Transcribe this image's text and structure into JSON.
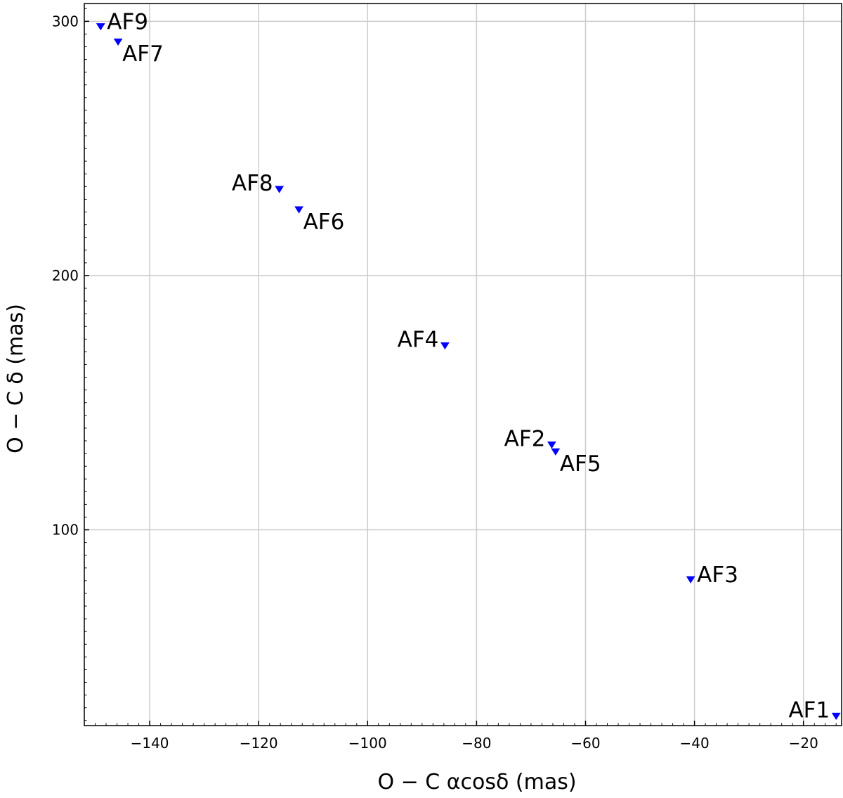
{
  "chart_data": {
    "type": "scatter",
    "xlabel": "O − C  αcosδ (mas)",
    "ylabel": "O − C  δ (mas)",
    "xlim": [
      -152,
      -13
    ],
    "ylim": [
      23,
      307
    ],
    "xticks": [
      -140,
      -120,
      -100,
      -80,
      -60,
      -40,
      -20
    ],
    "yticks": [
      100,
      200,
      300
    ],
    "grid": true,
    "marker": "triangle-down",
    "marker_color": "#0000ff",
    "points": [
      {
        "label": "AF9",
        "x": -149.0,
        "y": 298.0,
        "label_pos": "upper-right"
      },
      {
        "label": "AF7",
        "x": -145.8,
        "y": 292.0,
        "label_pos": "lower-right"
      },
      {
        "label": "AF8",
        "x": -116.2,
        "y": 234.0,
        "label_pos": "upper-left"
      },
      {
        "label": "AF6",
        "x": -112.6,
        "y": 226.0,
        "label_pos": "lower-right"
      },
      {
        "label": "AF4",
        "x": -85.8,
        "y": 172.5,
        "label_pos": "upper-left"
      },
      {
        "label": "AF2",
        "x": -66.2,
        "y": 133.5,
        "label_pos": "upper-left"
      },
      {
        "label": "AF5",
        "x": -65.5,
        "y": 130.8,
        "label_pos": "lower-right"
      },
      {
        "label": "AF3",
        "x": -40.7,
        "y": 80.5,
        "label_pos": "upper-right"
      },
      {
        "label": "AF1",
        "x": -14.0,
        "y": 26.8,
        "label_pos": "upper-left"
      }
    ]
  }
}
